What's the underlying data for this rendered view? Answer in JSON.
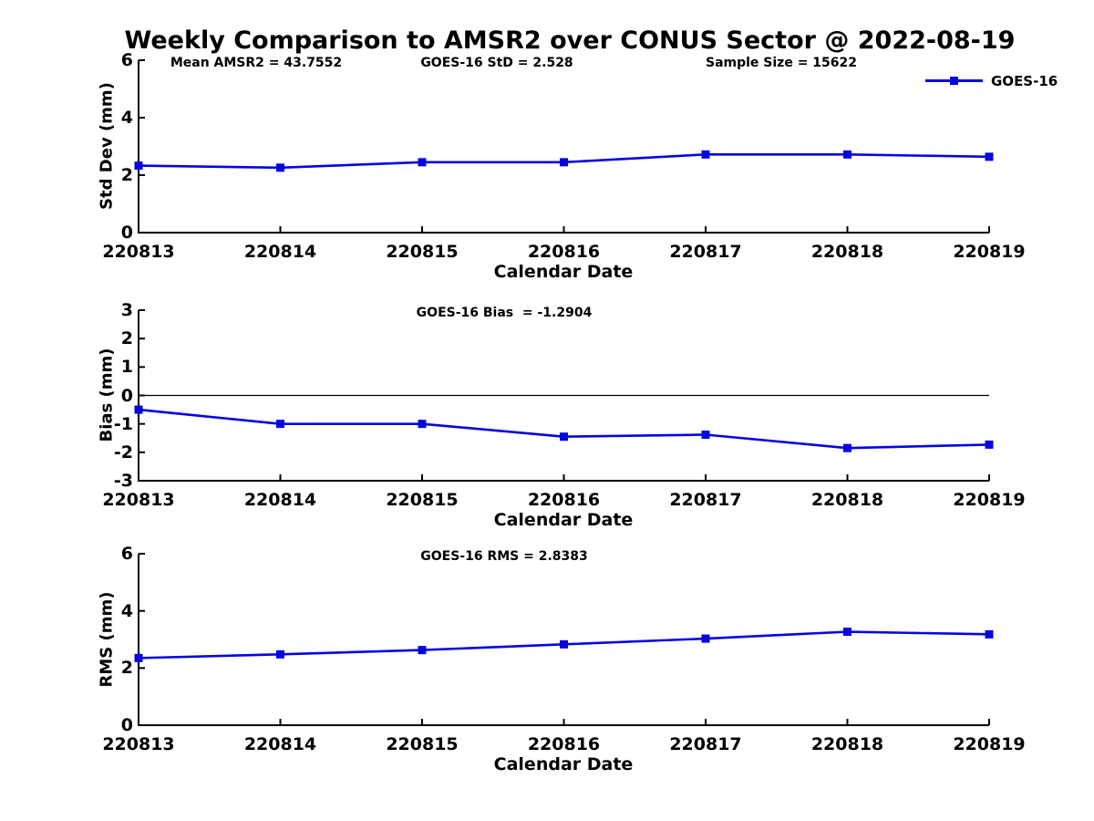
{
  "title": "Weekly Comparison to AMSR2 over CONUS Sector @ 2022-08-19",
  "colors": {
    "line": "#0505E0",
    "axis": "#000000",
    "zero_line": "#000000",
    "text": "#000000",
    "background": "#ffffff"
  },
  "legend": {
    "label": "GOES-16",
    "position": "upper right"
  },
  "chart_data": [
    {
      "type": "line",
      "name": "std-dev",
      "title_annotations": [
        "Mean AMSR2 = 43.7552",
        "GOES-16 StD = 2.528",
        "Sample Size = 15622"
      ],
      "ylabel": "Std Dev (mm)",
      "xlabel": "Calendar Date",
      "ylim": [
        0,
        6
      ],
      "yticks": [
        0,
        2,
        4,
        6
      ],
      "grid": false,
      "zero_line": false,
      "legend_visible": true,
      "categories": [
        "220813",
        "220814",
        "220815",
        "220816",
        "220817",
        "220818",
        "220819"
      ],
      "series": [
        {
          "name": "GOES-16",
          "values": [
            2.33,
            2.26,
            2.45,
            2.45,
            2.72,
            2.72,
            2.64
          ]
        }
      ]
    },
    {
      "type": "line",
      "name": "bias",
      "title_annotations": [
        "GOES-16 Bias  = -1.2904"
      ],
      "ylabel": "Bias (mm)",
      "xlabel": "Calendar Date",
      "ylim": [
        -3,
        3
      ],
      "yticks": [
        -3,
        -2,
        -1,
        0,
        1,
        2,
        3
      ],
      "grid": false,
      "zero_line": true,
      "legend_visible": false,
      "categories": [
        "220813",
        "220814",
        "220815",
        "220816",
        "220817",
        "220818",
        "220819"
      ],
      "series": [
        {
          "name": "GOES-16",
          "values": [
            -0.5,
            -1.0,
            -1.0,
            -1.45,
            -1.38,
            -1.85,
            -1.73
          ]
        }
      ]
    },
    {
      "type": "line",
      "name": "rms",
      "title_annotations": [
        "GOES-16 RMS = 2.8383"
      ],
      "ylabel": "RMS (mm)",
      "xlabel": "Calendar Date",
      "ylim": [
        0,
        6
      ],
      "yticks": [
        0,
        2,
        4,
        6
      ],
      "grid": false,
      "zero_line": false,
      "legend_visible": false,
      "categories": [
        "220813",
        "220814",
        "220815",
        "220816",
        "220817",
        "220818",
        "220819"
      ],
      "series": [
        {
          "name": "GOES-16",
          "values": [
            2.35,
            2.48,
            2.63,
            2.83,
            3.03,
            3.27,
            3.18
          ]
        }
      ]
    }
  ]
}
